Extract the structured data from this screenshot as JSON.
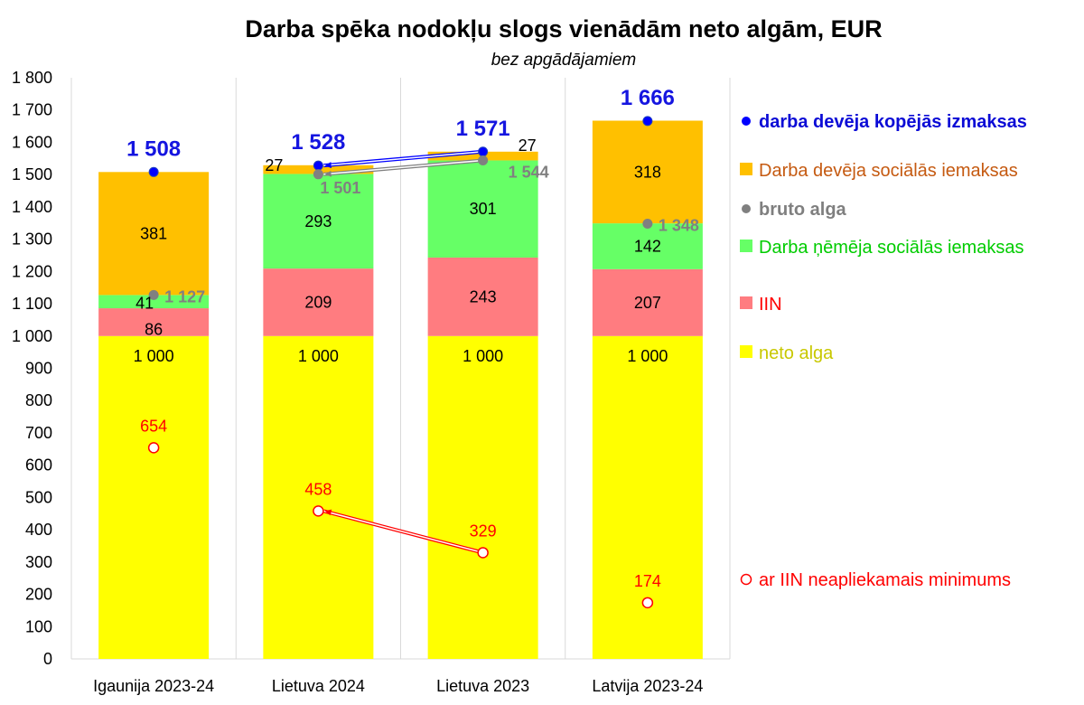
{
  "chart_data": {
    "type": "bar",
    "title": "Darba spēka nodokļu slogs vienādām neto algām, EUR",
    "subtitle": "bez apgādājamiem",
    "categories": [
      "Igaunija 2023-24",
      "Lietuva 2024",
      "Lietuva 2023",
      "Latvija 2023-24"
    ],
    "ylim": [
      0,
      1800
    ],
    "yticks": [
      0,
      100,
      200,
      300,
      400,
      500,
      600,
      700,
      800,
      900,
      1000,
      1100,
      1200,
      1300,
      1400,
      1500,
      1600,
      1700,
      1800
    ],
    "ytick_labels": [
      "0",
      "100",
      "200",
      "300",
      "400",
      "500",
      "600",
      "700",
      "800",
      "900",
      "1 000",
      "1 100",
      "1 200",
      "1 300",
      "1 400",
      "1 500",
      "1 600",
      "1 700",
      "1 800"
    ],
    "grid": "vertical",
    "legend_position": "right",
    "series": [
      {
        "name": "neto alga",
        "color": "#ffff00",
        "values": [
          1000,
          1000,
          1000,
          1000
        ],
        "labels": [
          "1 000",
          "1 000",
          "1 000",
          "1 000"
        ]
      },
      {
        "name": "IIN",
        "color": "#ff7c80",
        "values": [
          86,
          209,
          243,
          207
        ],
        "labels": [
          "86",
          "209",
          "243",
          "207"
        ]
      },
      {
        "name": "Darba ņēmēja sociālās iemaksas",
        "color": "#66ff66",
        "values": [
          41,
          293,
          301,
          142
        ],
        "labels": [
          "41",
          "293",
          "301",
          "142"
        ]
      },
      {
        "name": "Darba devēja sociālās iemaksas",
        "color": "#ffc000",
        "values": [
          381,
          27,
          27,
          318
        ],
        "labels": [
          "381",
          "27",
          "27",
          "318"
        ]
      }
    ],
    "points": [
      {
        "name": "darba devēja kopējās izmaksas",
        "color": "#0000ff",
        "values": [
          1508,
          1528,
          1571,
          1666
        ],
        "labels": [
          "1 508",
          "1 528",
          "1 571",
          "1 666"
        ]
      },
      {
        "name": "bruto alga",
        "color": "#808080",
        "values": [
          1127,
          1501,
          1544,
          1348
        ],
        "labels": [
          "1 127",
          "1 501",
          "1 544",
          "1 348"
        ]
      },
      {
        "name": "ar IIN neapliekamais minimums",
        "color": "#ff0000",
        "values": [
          654,
          458,
          329,
          174
        ],
        "labels": [
          "654",
          "458",
          "329",
          "174"
        ]
      }
    ],
    "annotations": [
      {
        "type": "arrow",
        "series": "darba devēja kopējās izmaksas",
        "from": "Lietuva 2023",
        "to": "Lietuva 2024",
        "color": "#0000ff"
      },
      {
        "type": "arrow",
        "series": "bruto alga",
        "from": "Lietuva 2023",
        "to": "Lietuva 2024",
        "color": "#808080"
      },
      {
        "type": "arrow",
        "series": "ar IIN neapliekamais minimums",
        "from": "Lietuva 2023",
        "to": "Lietuva 2024",
        "color": "#ff0000"
      }
    ]
  },
  "legend": [
    {
      "key": "total",
      "label": "darba devēja kopējās izmaksas",
      "color": "#0000ff",
      "text_color": "#0b0bd6",
      "bold": true,
      "marker": "dot"
    },
    {
      "key": "employer",
      "label": "Darba devēja sociālās iemaksas",
      "color": "#ffc000",
      "text_color": "#c55a11",
      "bold": false,
      "marker": "square"
    },
    {
      "key": "gross",
      "label": "bruto alga",
      "color": "#808080",
      "text_color": "#7f7f7f",
      "bold": true,
      "marker": "dot"
    },
    {
      "key": "employee",
      "label": "Darba ņēmēja sociālās iemaksas",
      "color": "#66ff66",
      "text_color": "#00cc00",
      "bold": false,
      "marker": "square"
    },
    {
      "key": "iin",
      "label": "IIN",
      "color": "#ff7c80",
      "text_color": "#ff0000",
      "bold": false,
      "marker": "square"
    },
    {
      "key": "net",
      "label": "neto alga",
      "color": "#ffff00",
      "text_color": "#c8c800",
      "bold": false,
      "marker": "square"
    },
    {
      "key": "minimum",
      "label": "ar IIN neapliekamais minimums",
      "color": "#ff0000",
      "text_color": "#ff0000",
      "bold": false,
      "marker": "circle"
    }
  ]
}
